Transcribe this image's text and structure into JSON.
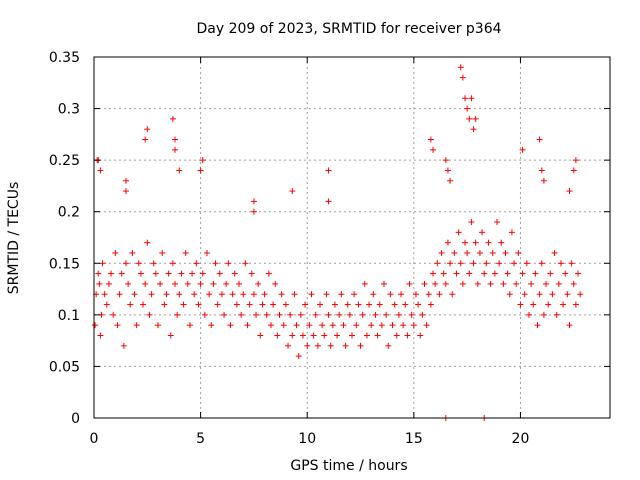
{
  "chart_data": {
    "type": "scatter",
    "title": "Day 209 of 2023, SRMTID for receiver p364",
    "xlabel": "GPS time / hours",
    "ylabel": "SRMTID / TECUs",
    "xlim": [
      0,
      24.2
    ],
    "ylim": [
      0,
      0.35
    ],
    "x_ticks": [
      0,
      5,
      10,
      15,
      20
    ],
    "x_tick_labels": [
      "0",
      "5",
      "10",
      "15",
      "20"
    ],
    "y_ticks": [
      0,
      0.05,
      0.1,
      0.15,
      0.2,
      0.25,
      0.3,
      0.35
    ],
    "y_tick_labels": [
      "0",
      "0.05",
      "0.1",
      "0.15",
      "0.2",
      "0.25",
      "0.3",
      "0.35"
    ],
    "grid": true,
    "marker": "+",
    "color": "#ff0000",
    "series": [
      {
        "name": "SRMTID",
        "x": [
          0.05,
          0.1,
          0.15,
          0.2,
          0.25,
          0.3,
          0.35,
          0.4,
          0.5,
          0.6,
          0.7,
          0.8,
          0.9,
          1.0,
          1.1,
          1.2,
          1.3,
          1.4,
          1.5,
          1.6,
          1.7,
          1.8,
          1.9,
          2.0,
          2.1,
          2.2,
          2.3,
          2.4,
          2.5,
          2.6,
          2.7,
          2.8,
          2.9,
          3.0,
          3.1,
          3.2,
          3.3,
          3.4,
          3.5,
          3.6,
          3.7,
          3.8,
          3.9,
          4.0,
          4.1,
          4.2,
          4.3,
          4.4,
          4.5,
          4.6,
          4.7,
          4.8,
          4.9,
          5.0,
          5.1,
          5.2,
          5.3,
          5.4,
          5.5,
          5.6,
          5.7,
          5.8,
          5.9,
          6.0,
          6.1,
          6.2,
          6.3,
          6.4,
          6.5,
          6.6,
          6.7,
          6.8,
          6.9,
          7.0,
          7.1,
          7.2,
          7.3,
          7.4,
          7.5,
          7.6,
          7.7,
          7.8,
          7.9,
          8.0,
          8.1,
          8.2,
          8.3,
          8.4,
          8.5,
          8.6,
          8.7,
          8.8,
          8.9,
          9.0,
          9.1,
          9.2,
          9.3,
          9.4,
          9.5,
          9.6,
          9.7,
          9.8,
          9.9,
          10.0,
          10.1,
          10.2,
          10.3,
          10.4,
          10.5,
          10.6,
          10.7,
          10.8,
          10.9,
          11.0,
          11.1,
          11.2,
          11.3,
          11.4,
          11.5,
          11.6,
          11.7,
          11.8,
          11.9,
          12.0,
          12.1,
          12.2,
          12.3,
          12.4,
          12.5,
          12.6,
          12.7,
          12.8,
          12.9,
          13.0,
          13.1,
          13.2,
          13.3,
          13.4,
          13.5,
          13.6,
          13.7,
          13.8,
          13.9,
          14.0,
          14.1,
          14.2,
          14.3,
          14.4,
          14.5,
          14.6,
          14.7,
          14.8,
          14.9,
          15.0,
          15.1,
          15.2,
          15.3,
          15.4,
          15.5,
          15.6,
          15.7,
          15.8,
          15.9,
          16.0,
          16.1,
          16.2,
          16.3,
          16.4,
          16.5,
          16.6,
          16.7,
          16.8,
          16.9,
          17.0,
          17.1,
          17.2,
          17.3,
          17.4,
          17.5,
          17.6,
          17.7,
          17.8,
          17.9,
          18.0,
          18.1,
          18.2,
          18.3,
          18.4,
          18.5,
          18.6,
          18.7,
          18.8,
          18.9,
          19.0,
          19.1,
          19.2,
          19.3,
          19.4,
          19.5,
          19.6,
          19.7,
          19.8,
          19.9,
          20.0,
          20.1,
          20.2,
          20.3,
          20.4,
          20.5,
          20.6,
          20.7,
          20.8,
          20.9,
          21.0,
          21.1,
          21.2,
          21.3,
          21.4,
          21.5,
          21.6,
          21.7,
          21.8,
          21.9,
          22.0,
          22.1,
          22.2,
          22.3,
          22.4,
          22.5,
          22.6,
          22.7,
          22.8,
          0.2,
          0.3,
          1.5,
          1.5,
          2.4,
          2.5,
          3.8,
          3.8,
          3.7,
          4.0,
          5.0,
          5.1,
          7.5,
          7.5,
          9.3,
          11.0,
          11.0,
          15.8,
          15.9,
          16.5,
          16.6,
          16.7,
          17.2,
          17.3,
          17.4,
          17.5,
          17.6,
          17.7,
          17.8,
          17.9,
          20.1,
          20.9,
          21.0,
          21.1,
          22.3,
          22.5,
          22.6,
          16.5,
          18.3
        ],
        "y": [
          0.09,
          0.12,
          0.25,
          0.14,
          0.13,
          0.08,
          0.1,
          0.15,
          0.12,
          0.11,
          0.13,
          0.14,
          0.1,
          0.16,
          0.09,
          0.12,
          0.14,
          0.07,
          0.15,
          0.13,
          0.11,
          0.16,
          0.12,
          0.09,
          0.15,
          0.14,
          0.11,
          0.13,
          0.17,
          0.1,
          0.12,
          0.15,
          0.14,
          0.09,
          0.13,
          0.16,
          0.11,
          0.12,
          0.14,
          0.08,
          0.15,
          0.13,
          0.1,
          0.12,
          0.14,
          0.11,
          0.16,
          0.13,
          0.09,
          0.14,
          0.12,
          0.15,
          0.11,
          0.13,
          0.14,
          0.1,
          0.16,
          0.12,
          0.09,
          0.13,
          0.15,
          0.11,
          0.14,
          0.12,
          0.1,
          0.13,
          0.15,
          0.09,
          0.12,
          0.14,
          0.11,
          0.13,
          0.1,
          0.12,
          0.15,
          0.09,
          0.11,
          0.14,
          0.12,
          0.1,
          0.13,
          0.08,
          0.11,
          0.12,
          0.1,
          0.14,
          0.09,
          0.11,
          0.13,
          0.08,
          0.1,
          0.12,
          0.09,
          0.11,
          0.07,
          0.1,
          0.08,
          0.12,
          0.09,
          0.06,
          0.1,
          0.08,
          0.11,
          0.07,
          0.09,
          0.12,
          0.08,
          0.1,
          0.07,
          0.11,
          0.09,
          0.08,
          0.12,
          0.1,
          0.07,
          0.09,
          0.11,
          0.08,
          0.1,
          0.12,
          0.09,
          0.07,
          0.11,
          0.1,
          0.08,
          0.12,
          0.09,
          0.11,
          0.07,
          0.1,
          0.13,
          0.08,
          0.11,
          0.09,
          0.12,
          0.1,
          0.08,
          0.11,
          0.09,
          0.13,
          0.1,
          0.07,
          0.12,
          0.09,
          0.11,
          0.08,
          0.1,
          0.12,
          0.09,
          0.11,
          0.08,
          0.13,
          0.1,
          0.09,
          0.12,
          0.11,
          0.08,
          0.1,
          0.13,
          0.09,
          0.12,
          0.11,
          0.14,
          0.13,
          0.15,
          0.12,
          0.16,
          0.14,
          0.13,
          0.17,
          0.15,
          0.12,
          0.16,
          0.14,
          0.18,
          0.15,
          0.13,
          0.17,
          0.16,
          0.14,
          0.19,
          0.15,
          0.17,
          0.13,
          0.16,
          0.18,
          0.14,
          0.15,
          0.17,
          0.13,
          0.16,
          0.14,
          0.19,
          0.15,
          0.17,
          0.13,
          0.16,
          0.14,
          0.12,
          0.18,
          0.15,
          0.13,
          0.16,
          0.11,
          0.14,
          0.12,
          0.15,
          0.1,
          0.13,
          0.11,
          0.14,
          0.09,
          0.12,
          0.15,
          0.1,
          0.13,
          0.11,
          0.14,
          0.12,
          0.16,
          0.1,
          0.13,
          0.15,
          0.11,
          0.14,
          0.12,
          0.09,
          0.15,
          0.13,
          0.11,
          0.14,
          0.12,
          0.25,
          0.24,
          0.22,
          0.23,
          0.27,
          0.28,
          0.27,
          0.26,
          0.29,
          0.24,
          0.24,
          0.25,
          0.2,
          0.21,
          0.22,
          0.24,
          0.21,
          0.27,
          0.26,
          0.25,
          0.24,
          0.23,
          0.34,
          0.33,
          0.31,
          0.3,
          0.29,
          0.31,
          0.28,
          0.29,
          0.26,
          0.27,
          0.24,
          0.23,
          0.22,
          0.24,
          0.25,
          0.0,
          0.0
        ]
      }
    ]
  }
}
